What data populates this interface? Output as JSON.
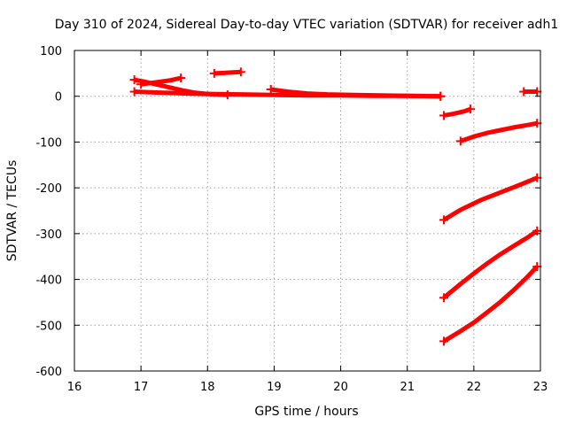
{
  "chart_data": {
    "type": "scatter",
    "title": "Day 310 of 2024, Sidereal Day-to-day VTEC variation (SDTVAR) for receiver adh1",
    "xlabel": "GPS time / hours",
    "ylabel": "SDTVAR / TECUs",
    "xlim": [
      16,
      23
    ],
    "ylim": [
      -600,
      100
    ],
    "xticks": [
      16,
      17,
      18,
      19,
      20,
      21,
      22,
      23
    ],
    "yticks": [
      100,
      0,
      -100,
      -200,
      -300,
      -400,
      -500,
      -600
    ],
    "xtick_labels": [
      "16",
      "17",
      "18",
      "19",
      "20",
      "21",
      "22",
      "23"
    ],
    "ytick_labels": [
      "100",
      "0",
      "-100",
      "-200",
      "-300",
      "-400",
      "-500",
      "-600"
    ],
    "grid": true,
    "legend": "none",
    "color": "#ff0000",
    "series": [
      {
        "name": "arc-1",
        "x": [
          16.9,
          17.1,
          17.3,
          17.5,
          17.7,
          18.0,
          18.5,
          19.0,
          19.5,
          20.0,
          20.5,
          21.0,
          21.5
        ],
        "y": [
          10,
          9,
          8,
          7,
          6,
          5,
          4,
          3,
          2,
          2,
          1,
          1,
          0
        ]
      },
      {
        "name": "arc-2",
        "x": [
          16.9,
          17.05,
          17.2,
          17.35,
          17.5,
          17.65,
          17.8,
          18.0,
          18.3
        ],
        "y": [
          36,
          32,
          27,
          22,
          17,
          12,
          8,
          5,
          3
        ]
      },
      {
        "name": "arc-3",
        "x": [
          17.0,
          17.15,
          17.3,
          17.45,
          17.6
        ],
        "y": [
          26,
          29,
          32,
          35,
          40
        ]
      },
      {
        "name": "arc-4",
        "x": [
          18.1,
          18.5
        ],
        "y": [
          50,
          53
        ]
      },
      {
        "name": "arc-5",
        "x": [
          18.95,
          19.2,
          19.5,
          19.8,
          20.2,
          20.6,
          21.0,
          21.5
        ],
        "y": [
          15,
          10,
          6,
          4,
          3,
          2,
          1,
          0
        ]
      },
      {
        "name": "arc-6",
        "x": [
          21.55,
          21.7,
          21.85,
          21.95
        ],
        "y": [
          -42,
          -38,
          -33,
          -28
        ]
      },
      {
        "name": "arc-7",
        "x": [
          22.75,
          22.95
        ],
        "y": [
          10,
          10
        ]
      },
      {
        "name": "arc-8",
        "x": [
          21.8,
          22.0,
          22.2,
          22.4,
          22.6,
          22.8,
          22.95
        ],
        "y": [
          -98,
          -88,
          -80,
          -74,
          -68,
          -63,
          -59
        ]
      },
      {
        "name": "arc-9",
        "x": [
          21.55,
          21.8,
          22.1,
          22.4,
          22.7,
          22.95
        ],
        "y": [
          -270,
          -248,
          -227,
          -210,
          -193,
          -178
        ]
      },
      {
        "name": "arc-10",
        "x": [
          21.55,
          21.8,
          22.0,
          22.2,
          22.4,
          22.6,
          22.8,
          22.95
        ],
        "y": [
          -440,
          -410,
          -387,
          -365,
          -345,
          -327,
          -309,
          -294
        ]
      },
      {
        "name": "arc-11",
        "x": [
          21.55,
          21.8,
          22.0,
          22.2,
          22.4,
          22.6,
          22.8,
          22.95
        ],
        "y": [
          -535,
          -513,
          -494,
          -472,
          -449,
          -423,
          -395,
          -372
        ]
      }
    ]
  }
}
